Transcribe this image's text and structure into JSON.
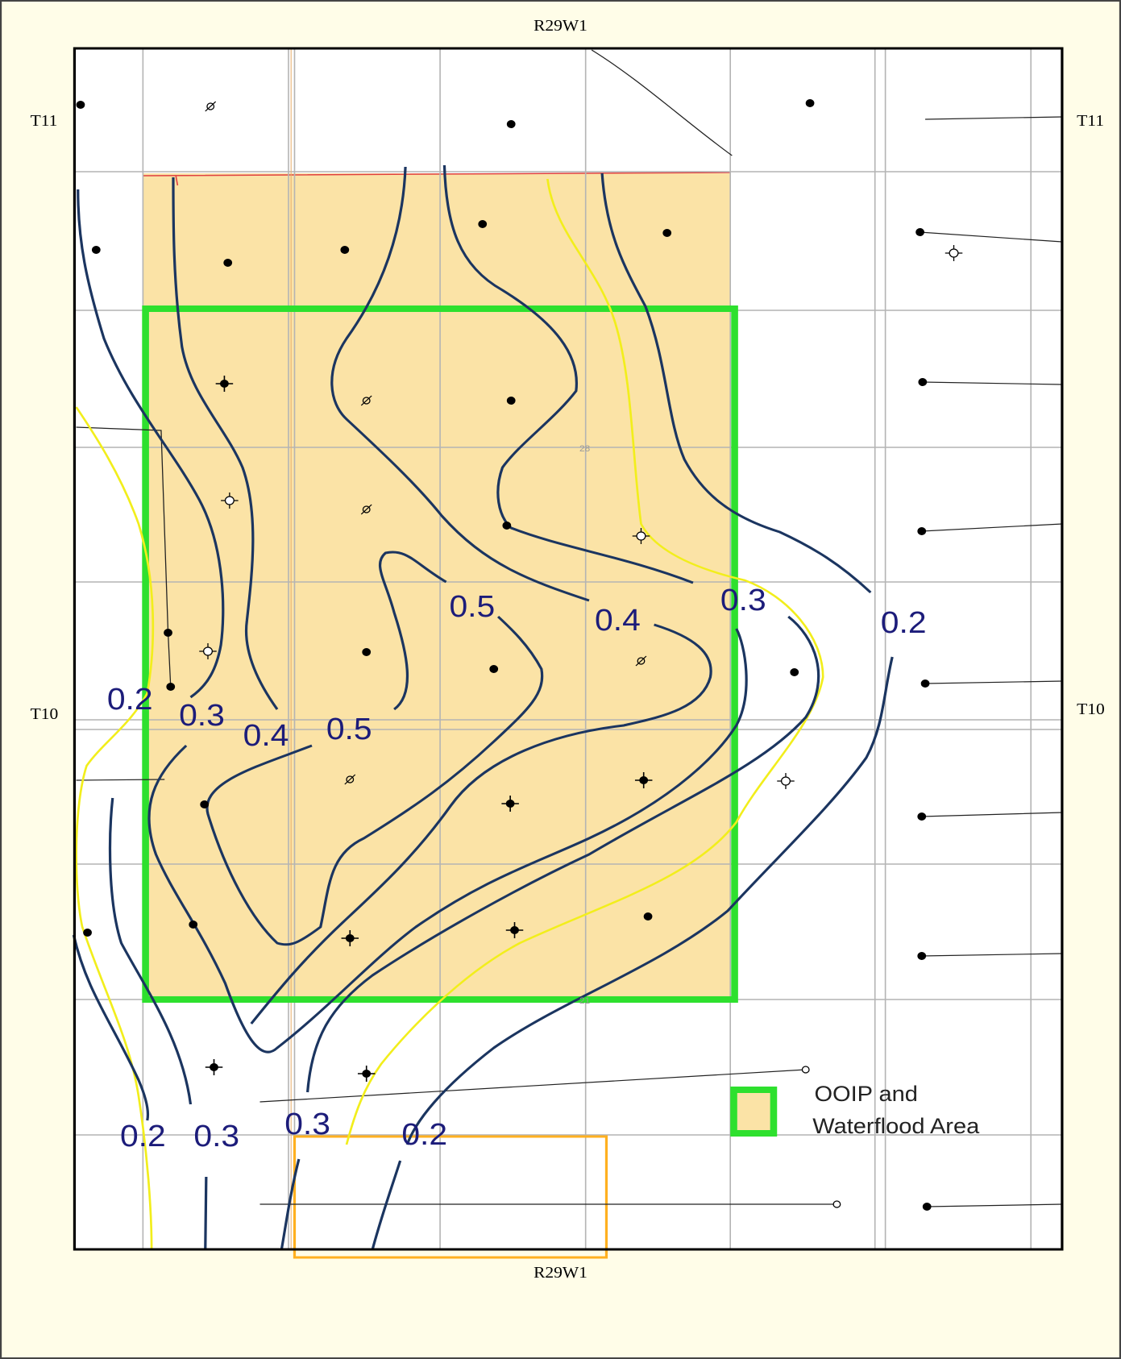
{
  "map": {
    "range_labels": {
      "top": "R29W1",
      "bottom": "R29W1"
    },
    "township_labels": {
      "left": [
        "T11",
        "T10"
      ],
      "right": [
        "T11",
        "T10"
      ]
    },
    "section_numbers": [
      "28",
      "21"
    ],
    "contour_labels": [
      "0.5",
      "0.4",
      "0.3",
      "0.2",
      "0.2",
      "0.3",
      "0.4",
      "0.5",
      "0.2",
      "0.3",
      "0.3",
      "0.2"
    ],
    "legend": {
      "lines": [
        "OOIP and",
        "Waterflood Area"
      ]
    }
  }
}
